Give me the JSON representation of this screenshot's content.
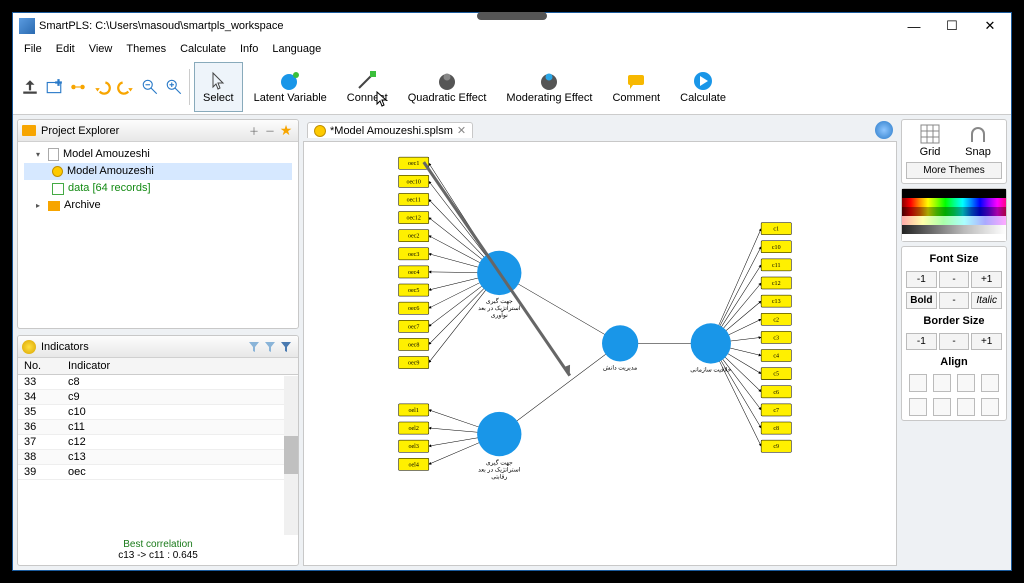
{
  "window": {
    "title": "SmartPLS: C:\\Users\\masoud\\smartpls_workspace",
    "min": "—",
    "max": "☐",
    "close": "✕"
  },
  "menu": [
    "File",
    "Edit",
    "View",
    "Themes",
    "Calculate",
    "Info",
    "Language"
  ],
  "toolbar": {
    "select": "Select",
    "latent": "Latent Variable",
    "connect": "Connect",
    "quad": "Quadratic Effect",
    "mod": "Moderating Effect",
    "comment": "Comment",
    "calc": "Calculate"
  },
  "projectExplorer": {
    "title": "Project Explorer",
    "root": "Model Amouzeshi",
    "model": "Model Amouzeshi",
    "data": "data [64 records]",
    "archive": "Archive"
  },
  "tab": {
    "name": "*Model Amouzeshi.splsm"
  },
  "indicators": {
    "title": "Indicators",
    "colNo": "No.",
    "colInd": "Indicator",
    "rows": [
      {
        "n": "33",
        "i": "c8"
      },
      {
        "n": "34",
        "i": "c9"
      },
      {
        "n": "35",
        "i": "c10"
      },
      {
        "n": "36",
        "i": "c11"
      },
      {
        "n": "37",
        "i": "c12"
      },
      {
        "n": "38",
        "i": "c13"
      },
      {
        "n": "39",
        "i": "oec"
      }
    ],
    "best": "Best correlation",
    "bestval": "c13 -> c11 : 0.645"
  },
  "right": {
    "grid": "Grid",
    "snap": "Snap",
    "more": "More Themes",
    "fontsize": "Font Size",
    "minus": "-1",
    "dash": "-",
    "plus": "+1",
    "bold": "Bold",
    "italic": "Italic",
    "bordersize": "Border Size",
    "align": "Align"
  },
  "lv": {
    "top": "جهت گیری\nاستراتژیک در بعد\nنوآوری",
    "bottom": "جهت گیری\nاستراتژیک در بعد\nرقابتی",
    "mid": "مدیریت دانش",
    "right": "خلاقیت سازمانی"
  },
  "indL1": [
    "oec1",
    "oec10",
    "oec11",
    "oec12",
    "oec2",
    "oec3",
    "oec4",
    "oec5",
    "oec6",
    "oec7",
    "oec8",
    "oec9"
  ],
  "indL2": [
    "oel1",
    "oel2",
    "oel3",
    "oel4"
  ],
  "indR": [
    "c1",
    "c10",
    "c11",
    "c12",
    "c13",
    "c2",
    "c3",
    "c4",
    "c5",
    "c6",
    "c7",
    "c8",
    "c9"
  ]
}
